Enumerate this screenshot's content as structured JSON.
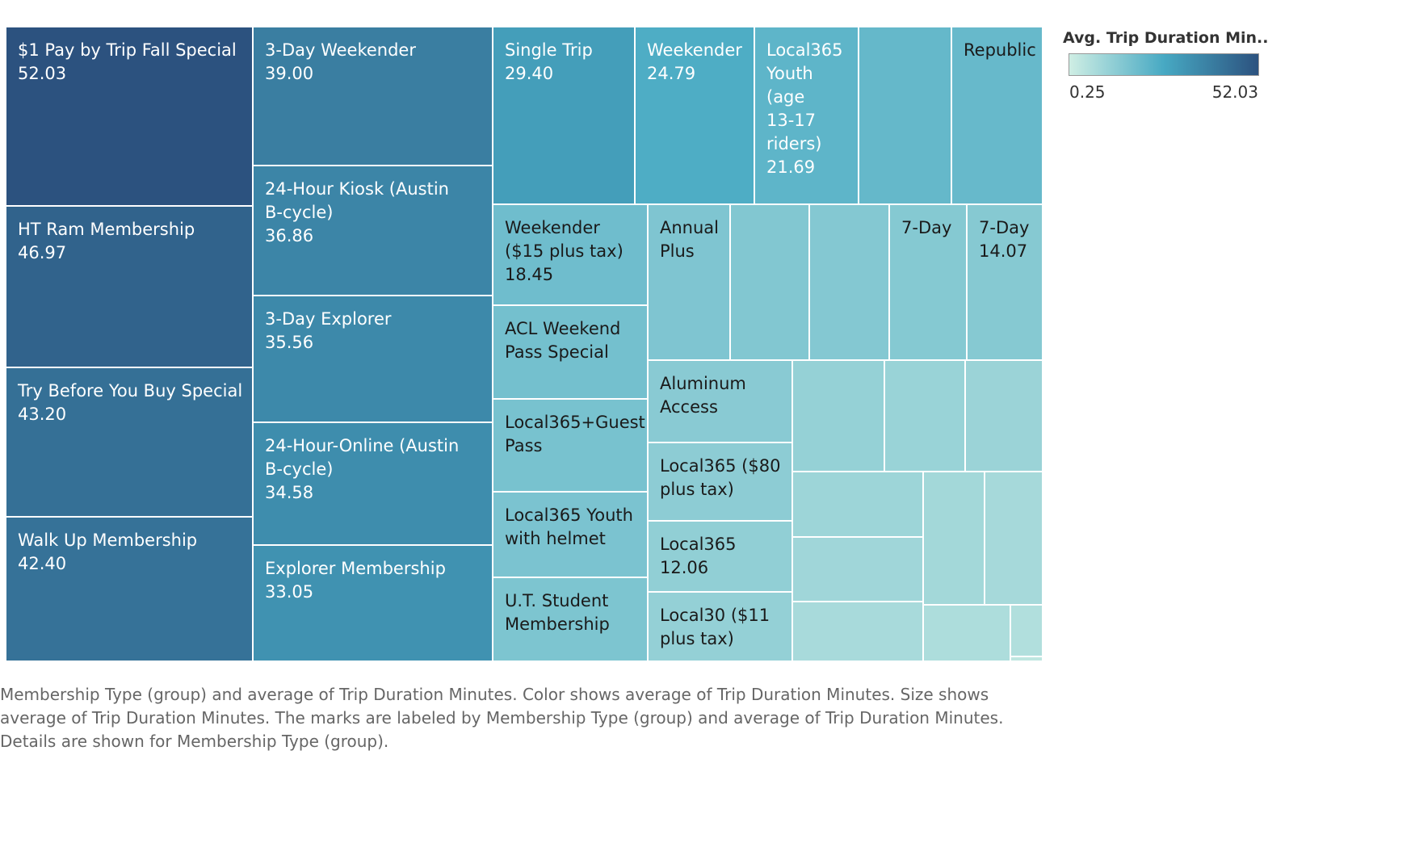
{
  "chart_data": {
    "type": "treemap",
    "size_and_color_measure": "Avg. Trip Duration Minutes",
    "legend": {
      "title": "Avg. Trip Duration Min..",
      "min_label": "0.25",
      "max_label": "52.03",
      "min": 0.25,
      "max": 52.03,
      "position": "top-right"
    },
    "items": [
      {
        "name": "$1 Pay by Trip Fall Special",
        "value": 52.03,
        "label": "$1 Pay by Trip Fall Special\n52.03"
      },
      {
        "name": "HT Ram Membership",
        "value": 46.97,
        "label": "HT Ram Membership\n46.97"
      },
      {
        "name": "Try Before You Buy Special",
        "value": 43.2,
        "label": "Try Before You Buy Special\n43.20"
      },
      {
        "name": "Walk Up Membership",
        "value": 42.4,
        "label": "Walk Up Membership\n42.40"
      },
      {
        "name": "3-Day Weekender",
        "value": 39.0,
        "label": "3-Day Weekender\n39.00"
      },
      {
        "name": "24-Hour Kiosk (Austin B-cycle)",
        "value": 36.86,
        "label": "24-Hour Kiosk (Austin\nB-cycle)\n36.86"
      },
      {
        "name": "3-Day Explorer",
        "value": 35.56,
        "label": "3-Day Explorer\n35.56"
      },
      {
        "name": "24-Hour-Online (Austin B-cycle)",
        "value": 34.58,
        "label": "24-Hour-Online (Austin\nB-cycle)\n34.58"
      },
      {
        "name": "Explorer Membership",
        "value": 33.05,
        "label": "Explorer Membership\n33.05"
      },
      {
        "name": "Single Trip",
        "value": 29.4,
        "label": "Single Trip\n29.40"
      },
      {
        "name": "Weekender",
        "value": 24.79,
        "label": "Weekender\n24.79"
      },
      {
        "name": "Local365 Youth (age 13-17 riders)",
        "value": 21.69,
        "label": "Local365\nYouth\n(age\n13-17\nriders)\n21.69"
      },
      {
        "name": "(unlabeled A)",
        "value": 20.5,
        "label": ""
      },
      {
        "name": "Republic",
        "value": 20.0,
        "label": "Republic"
      },
      {
        "name": "Weekender ($15 plus tax)",
        "value": 18.45,
        "label": "Weekender\n($15 plus tax)\n18.45"
      },
      {
        "name": "ACL Weekend Pass Special",
        "value": 17.5,
        "label": "ACL Weekend\nPass Special"
      },
      {
        "name": "Local365+Guest Pass",
        "value": 16.9,
        "label": "Local365+Guest\nPass"
      },
      {
        "name": "Local365 Youth with helmet",
        "value": 16.3,
        "label": "Local365 Youth\nwith helmet"
      },
      {
        "name": "U.T. Student Membership",
        "value": 15.8,
        "label": "U.T. Student\nMembership"
      },
      {
        "name": "Annual Plus",
        "value": 15.5,
        "label": "Annual\nPlus"
      },
      {
        "name": "(unlabeled B)",
        "value": 15.0,
        "label": ""
      },
      {
        "name": "(unlabeled C)",
        "value": 14.6,
        "label": ""
      },
      {
        "name": "7-Day",
        "value": 14.3,
        "label": "7-Day"
      },
      {
        "name": "7-Day",
        "value": 14.07,
        "label": "7-Day\n14.07"
      },
      {
        "name": "Aluminum Access",
        "value": 13.6,
        "label": "Aluminum\nAccess"
      },
      {
        "name": "Local365 ($80 plus tax)",
        "value": 12.9,
        "label": "Local365 ($80\nplus tax)"
      },
      {
        "name": "Local365",
        "value": 12.06,
        "label": "Local365\n12.06"
      },
      {
        "name": "Local30 ($11 plus tax)",
        "value": 11.5,
        "label": "Local30 ($11\nplus tax)"
      },
      {
        "name": "(unlabeled D)",
        "value": 11.2,
        "label": ""
      },
      {
        "name": "(unlabeled E)",
        "value": 10.5,
        "label": ""
      },
      {
        "name": "(unlabeled F)",
        "value": 10.2,
        "label": ""
      },
      {
        "name": "(unlabeled G)",
        "value": 9.8,
        "label": ""
      },
      {
        "name": "(unlabeled H)",
        "value": 9.2,
        "label": ""
      },
      {
        "name": "(unlabeled I)",
        "value": 8.6,
        "label": ""
      },
      {
        "name": "(unlabeled J)",
        "value": 8.1,
        "label": ""
      },
      {
        "name": "(unlabeled K)",
        "value": 7.6,
        "label": ""
      },
      {
        "name": "(unlabeled L)",
        "value": 6.8,
        "label": ""
      },
      {
        "name": "(unlabeled M)",
        "value": 5.9,
        "label": ""
      },
      {
        "name": "(unlabeled N)",
        "value": 3.4,
        "label": ""
      },
      {
        "name": "(unlabeled O)",
        "value": 0.25,
        "label": ""
      }
    ]
  },
  "caption": "Membership Type (group) and average of Trip Duration Minutes.  Color shows average of Trip Duration Minutes.  Size shows average of Trip Duration Minutes.  The marks are labeled by Membership Type (group) and average of Trip Duration Minutes.  Details are shown for Membership Type (group).",
  "colors": {
    "low": "#cfeee4",
    "mid": "#47a9c3",
    "high": "#2c527f"
  }
}
